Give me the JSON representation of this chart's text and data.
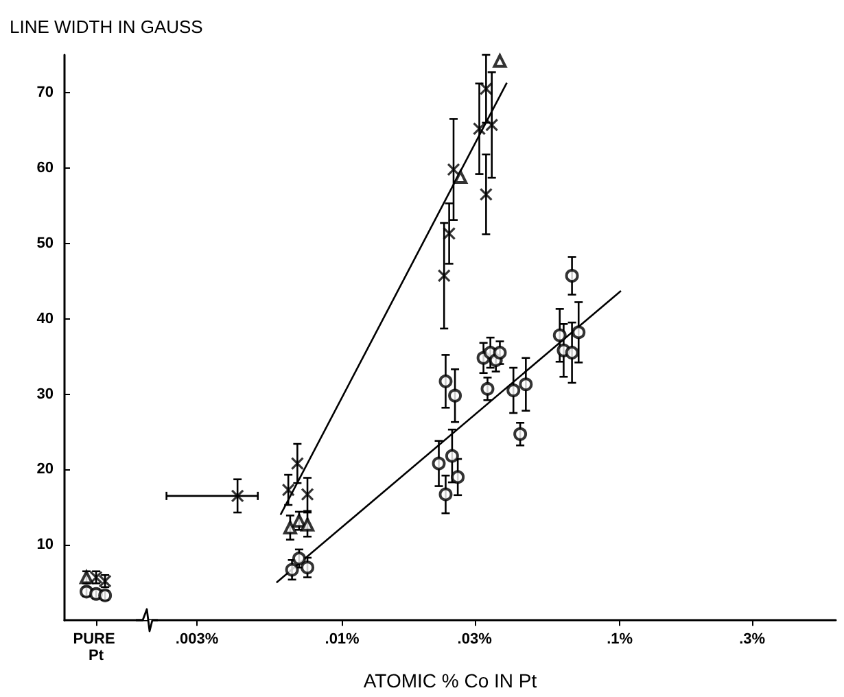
{
  "chart_data": {
    "type": "scatter",
    "xlabel": "ATOMIC % Co IN Pt",
    "ylabel": "LINE WIDTH IN GAUSS",
    "log": "x",
    "xlim": [
      0.001,
      0.6
    ],
    "xticks": [
      {
        "value": 0.0013,
        "label": "PURE Pt"
      },
      {
        "value": 0.003,
        "label": ".003%"
      },
      {
        "value": 0.01,
        "label": ".01%"
      },
      {
        "value": 0.03,
        "label": ".03%"
      },
      {
        "value": 0.1,
        "label": ".1%"
      },
      {
        "value": 0.3,
        "label": ".3%"
      }
    ],
    "ylim": [
      0,
      75
    ],
    "yticks": [
      10,
      20,
      30,
      40,
      50,
      60,
      70
    ],
    "series": [
      {
        "marker": "cross",
        "color": "#000000",
        "x": [
          0.0013,
          0.0014,
          0.0042,
          0.0064,
          0.0069,
          0.0075,
          0.0233,
          0.0243,
          0.0252,
          0.0312,
          0.033,
          0.0346,
          0.033
        ],
        "values": [
          5.7,
          5.2,
          16.5,
          17.3,
          20.8,
          16.7,
          45.7,
          51.3,
          59.8,
          65.2,
          70.5,
          65.7,
          56.5
        ],
        "errors": [
          0.8,
          0.8,
          2.2,
          2,
          2.6,
          2.2,
          7,
          4,
          6.7,
          6,
          4.5,
          7,
          5.3
        ],
        "xerrors": [
          null,
          null,
          [
            0.00233,
            0.00497
          ],
          null,
          null,
          null,
          null,
          null,
          null,
          null,
          null,
          null,
          null
        ]
      },
      {
        "marker": "triangle",
        "color": "#000000",
        "x": [
          0.0012,
          0.0065,
          0.007,
          0.0075,
          0.0267,
          0.037
        ],
        "values": [
          5.7,
          12.3,
          13.2,
          12.7,
          58.8,
          74.2
        ],
        "errors": [
          0.8,
          1.6,
          1.2,
          1.6,
          null,
          null
        ]
      },
      {
        "marker": "circle",
        "color": "#000000",
        "x": [
          0.0012,
          0.0013,
          0.0014,
          0.0066,
          0.007,
          0.0075,
          0.0223,
          0.0236,
          0.0249,
          0.0261,
          0.0236,
          0.0255,
          0.0323,
          0.0334,
          0.0342,
          0.0358,
          0.037,
          0.0414,
          0.0438,
          0.0459,
          0.0608,
          0.0628,
          0.0673,
          0.0673,
          0.0711
        ],
        "values": [
          3.8,
          3.5,
          3.3,
          6.7,
          8.2,
          7,
          20.8,
          16.7,
          21.8,
          19,
          31.7,
          29.8,
          34.8,
          30.7,
          35.5,
          34.5,
          35.5,
          30.5,
          24.7,
          31.3,
          37.8,
          35.8,
          35.5,
          45.7,
          38.2
        ],
        "errors": [
          0.6,
          0.6,
          0.6,
          1.3,
          1.2,
          1.3,
          3,
          2.5,
          3.5,
          2.4,
          3.5,
          3.5,
          2,
          1.5,
          2,
          1.5,
          1.5,
          3,
          1.5,
          3.5,
          3.5,
          3.5,
          4,
          2.5,
          4
        ]
      },
      {
        "type": "line",
        "marker": "none",
        "color": "#000000",
        "x": [
          0.006,
          0.0392
        ],
        "values": [
          14,
          71.3
        ]
      },
      {
        "type": "line",
        "marker": "none",
        "color": "#000000",
        "x": [
          0.0058,
          0.101
        ],
        "values": [
          5,
          43.7
        ]
      }
    ]
  }
}
